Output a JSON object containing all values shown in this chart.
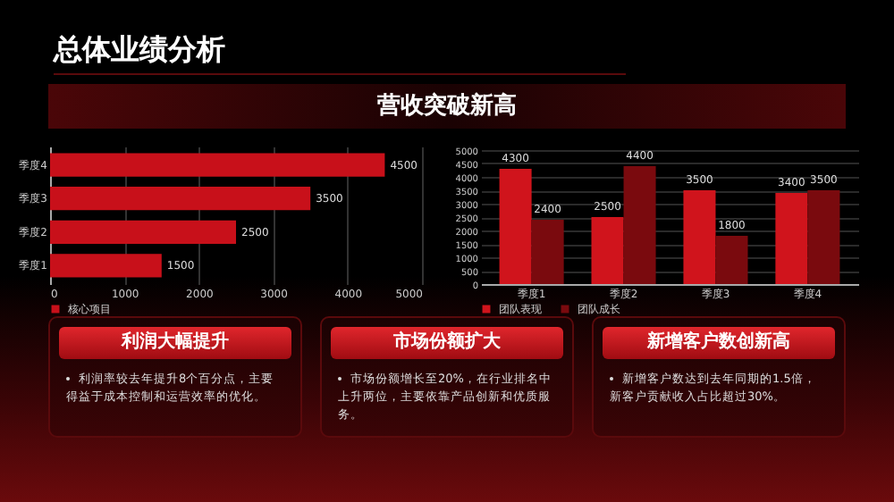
{
  "chart_data": [
    {
      "type": "other",
      "title": "总体业绩分析",
      "subtitle": "营收突破新高"
    },
    {
      "type": "bar",
      "orientation": "horizontal",
      "categories": [
        "季度4",
        "季度3",
        "季度2",
        "季度1"
      ],
      "series": [
        {
          "name": "核心项目",
          "color": "#c8101a",
          "values": [
            4500,
            3500,
            2500,
            1500
          ]
        }
      ],
      "xlim": [
        0,
        5000
      ],
      "xticks": [
        0,
        1000,
        2000,
        3000,
        4000,
        5000
      ],
      "grid": "x",
      "legend": "bottom",
      "data_labels": true
    },
    {
      "type": "bar",
      "categories": [
        "季度1",
        "季度2",
        "季度3",
        "季度4"
      ],
      "series": [
        {
          "name": "团队表现",
          "color": "#d0141c",
          "values": [
            4300,
            2500,
            3500,
            3400
          ]
        },
        {
          "name": "团队成长",
          "color": "#7a0a0e",
          "values": [
            2400,
            4400,
            1800,
            3500
          ]
        }
      ],
      "ylim": [
        0,
        5000
      ],
      "yticks": [
        0,
        500,
        1000,
        1500,
        2000,
        2500,
        3000,
        3500,
        4000,
        4500,
        5000
      ],
      "grid": "y",
      "legend": "bottom",
      "data_labels": true
    },
    {
      "type": "other",
      "annotations": [
        "利润大幅提升",
        "利润率较去年提升8个百分点，主要得益于成本控制和运营效率的优化。",
        "市场份额扩大",
        "市场份额增长至20%，在行业排名中上升两位，主要依靠产品创新和优质服务。",
        "新增客户数创新高",
        "新增客户数达到去年同期的1.5倍，新客户贡献收入占比超过30%。"
      ]
    }
  ]
}
